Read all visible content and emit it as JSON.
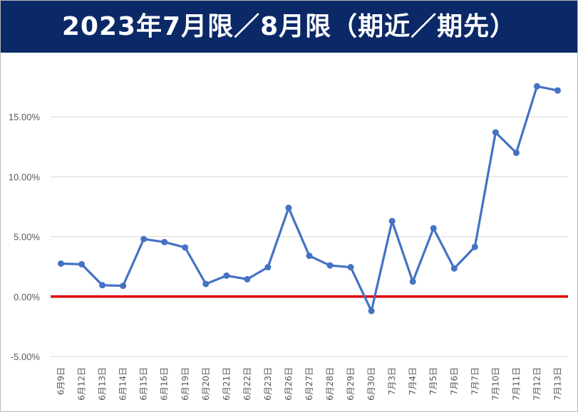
{
  "chart_data": {
    "type": "line",
    "title": "2023年7月限／8月限（期近／期先）",
    "categories": [
      "6月9日",
      "6月12日",
      "6月13日",
      "6月14日",
      "6月15日",
      "6月16日",
      "6月19日",
      "6月20日",
      "6月21日",
      "6月22日",
      "6月23日",
      "6月26日",
      "6月27日",
      "6月28日",
      "6月29日",
      "6月30日",
      "7月3日",
      "7月4日",
      "7月5日",
      "7月6日",
      "7月7日",
      "7月10日",
      "7月11日",
      "7月12日",
      "7月13日"
    ],
    "series": [
      {
        "values": [
          2.75,
          2.7,
          0.95,
          0.9,
          4.8,
          4.55,
          4.1,
          1.05,
          1.75,
          1.45,
          2.45,
          7.4,
          3.4,
          2.6,
          2.45,
          -1.2,
          6.3,
          1.25,
          5.7,
          2.35,
          4.15,
          13.7,
          12.0,
          17.55,
          17.2
        ],
        "color": "#4472c4"
      }
    ],
    "ylim": [
      -5,
      20
    ],
    "yticks": [
      "-5.00%",
      "0.00%",
      "5.00%",
      "10.00%",
      "15.00%"
    ],
    "ytick_values": [
      -5,
      0,
      5,
      10,
      15
    ],
    "reference_line": {
      "value": 0,
      "color": "#e00000"
    },
    "grid": true,
    "legend": "none"
  }
}
